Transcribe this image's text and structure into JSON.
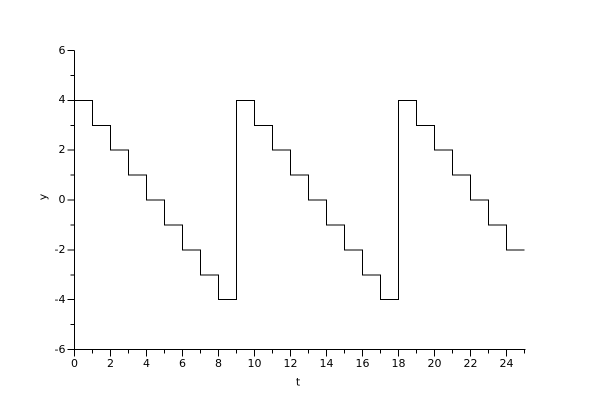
{
  "figure": {
    "background": "#ffffff"
  },
  "chart_data": {
    "type": "line",
    "step": true,
    "title": "",
    "xlabel": "t",
    "ylabel": "y",
    "xlim": [
      0,
      25
    ],
    "ylim": [
      -6,
      6
    ],
    "grid": false,
    "legend": null,
    "axis_color": "#000000",
    "line_color": "#000000",
    "x_major_ticks": [
      0,
      2,
      4,
      6,
      8,
      10,
      12,
      14,
      16,
      18,
      20,
      22,
      24
    ],
    "x_minor_ticks": [
      1,
      3,
      5,
      7,
      9,
      11,
      13,
      15,
      17,
      19,
      21,
      23,
      25
    ],
    "y_major_ticks": [
      -6,
      -4,
      -2,
      0,
      2,
      4,
      6
    ],
    "y_minor_ticks": [
      -5,
      -3,
      -1,
      1,
      3,
      5
    ],
    "points": [
      [
        0,
        4
      ],
      [
        1,
        4
      ],
      [
        1,
        3
      ],
      [
        2,
        3
      ],
      [
        2,
        2
      ],
      [
        3,
        2
      ],
      [
        3,
        1
      ],
      [
        4,
        1
      ],
      [
        4,
        0
      ],
      [
        5,
        0
      ],
      [
        5,
        -1
      ],
      [
        6,
        -1
      ],
      [
        6,
        -2
      ],
      [
        7,
        -2
      ],
      [
        7,
        -3
      ],
      [
        8,
        -3
      ],
      [
        8,
        -4
      ],
      [
        9,
        -4
      ],
      [
        9,
        4
      ],
      [
        10,
        4
      ],
      [
        10,
        3
      ],
      [
        11,
        3
      ],
      [
        11,
        2
      ],
      [
        12,
        2
      ],
      [
        12,
        1
      ],
      [
        13,
        1
      ],
      [
        13,
        0
      ],
      [
        14,
        0
      ],
      [
        14,
        -1
      ],
      [
        15,
        -1
      ],
      [
        15,
        -2
      ],
      [
        16,
        -2
      ],
      [
        16,
        -3
      ],
      [
        17,
        -3
      ],
      [
        17,
        -4
      ],
      [
        18,
        -4
      ],
      [
        18,
        4
      ],
      [
        19,
        4
      ],
      [
        19,
        3
      ],
      [
        20,
        3
      ],
      [
        20,
        2
      ],
      [
        21,
        2
      ],
      [
        21,
        1
      ],
      [
        22,
        1
      ],
      [
        22,
        0
      ],
      [
        23,
        0
      ],
      [
        23,
        -1
      ],
      [
        24,
        -1
      ],
      [
        24,
        -2
      ],
      [
        25,
        -2
      ]
    ]
  }
}
